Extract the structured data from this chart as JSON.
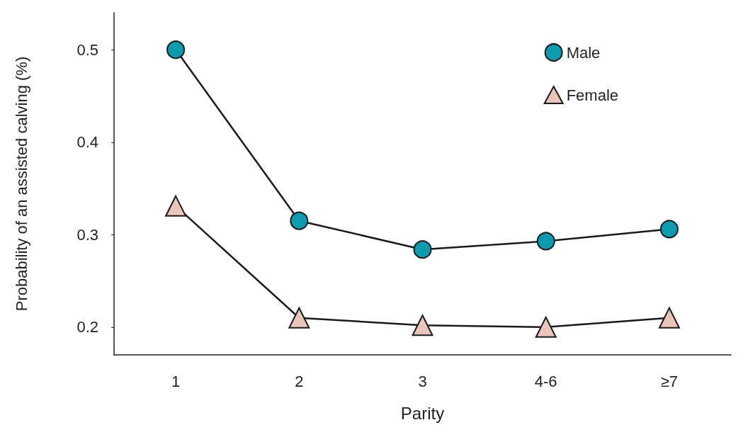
{
  "chart_data": {
    "type": "line",
    "xlabel": "Parity",
    "ylabel": "Probability of an assisted calving (%)",
    "categories": [
      "1",
      "2",
      "3",
      "4-6",
      "≥7"
    ],
    "series": [
      {
        "name": "Male",
        "color": "#0e9bb0",
        "marker": "circle",
        "values": [
          0.5,
          0.315,
          0.284,
          0.293,
          0.306
        ]
      },
      {
        "name": "Female",
        "color": "#eac5b9",
        "marker": "triangle",
        "values": [
          0.331,
          0.21,
          0.202,
          0.2,
          0.21
        ]
      }
    ],
    "ylim": [
      0.17,
      0.54
    ],
    "yticks": [
      0.2,
      0.3,
      0.4,
      0.5
    ],
    "grid": false,
    "legend": "top right",
    "line_style": "solid"
  }
}
